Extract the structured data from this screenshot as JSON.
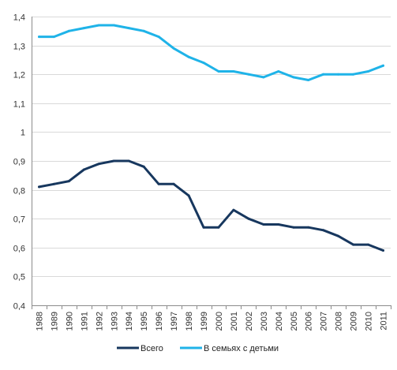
{
  "chart_data": {
    "type": "line",
    "title": "",
    "xlabel": "",
    "ylabel": "",
    "ylim": [
      0.4,
      1.4
    ],
    "y_ticks": [
      "0,4",
      "0,5",
      "0,6",
      "0,7",
      "0,8",
      "0,9",
      "1",
      "1,1",
      "1,2",
      "1,3",
      "1,4"
    ],
    "y_tick_values": [
      0.4,
      0.5,
      0.6,
      0.7,
      0.8,
      0.9,
      1.0,
      1.1,
      1.2,
      1.3,
      1.4
    ],
    "categories": [
      "1988",
      "1989",
      "1990",
      "1991",
      "1992",
      "1993",
      "1994",
      "1995",
      "1996",
      "1997",
      "1998",
      "1999",
      "2000",
      "2001",
      "2002",
      "2003",
      "2004",
      "2005",
      "2006",
      "2007",
      "2008",
      "2009",
      "2010",
      "2011"
    ],
    "grid": true,
    "legend_position": "bottom",
    "series": [
      {
        "name": "Всего",
        "color": "#17375e",
        "values": [
          0.81,
          0.82,
          0.83,
          0.87,
          0.89,
          0.9,
          0.9,
          0.88,
          0.82,
          0.82,
          0.78,
          0.67,
          0.67,
          0.73,
          0.7,
          0.68,
          0.68,
          0.67,
          0.67,
          0.66,
          0.64,
          0.61,
          0.61,
          0.59
        ]
      },
      {
        "name": "В семьях с детьми",
        "color": "#1fb3e8",
        "values": [
          1.33,
          1.33,
          1.35,
          1.36,
          1.37,
          1.37,
          1.36,
          1.35,
          1.33,
          1.29,
          1.26,
          1.24,
          1.21,
          1.21,
          1.2,
          1.19,
          1.21,
          1.19,
          1.18,
          1.2,
          1.2,
          1.2,
          1.21,
          1.23
        ]
      }
    ]
  }
}
